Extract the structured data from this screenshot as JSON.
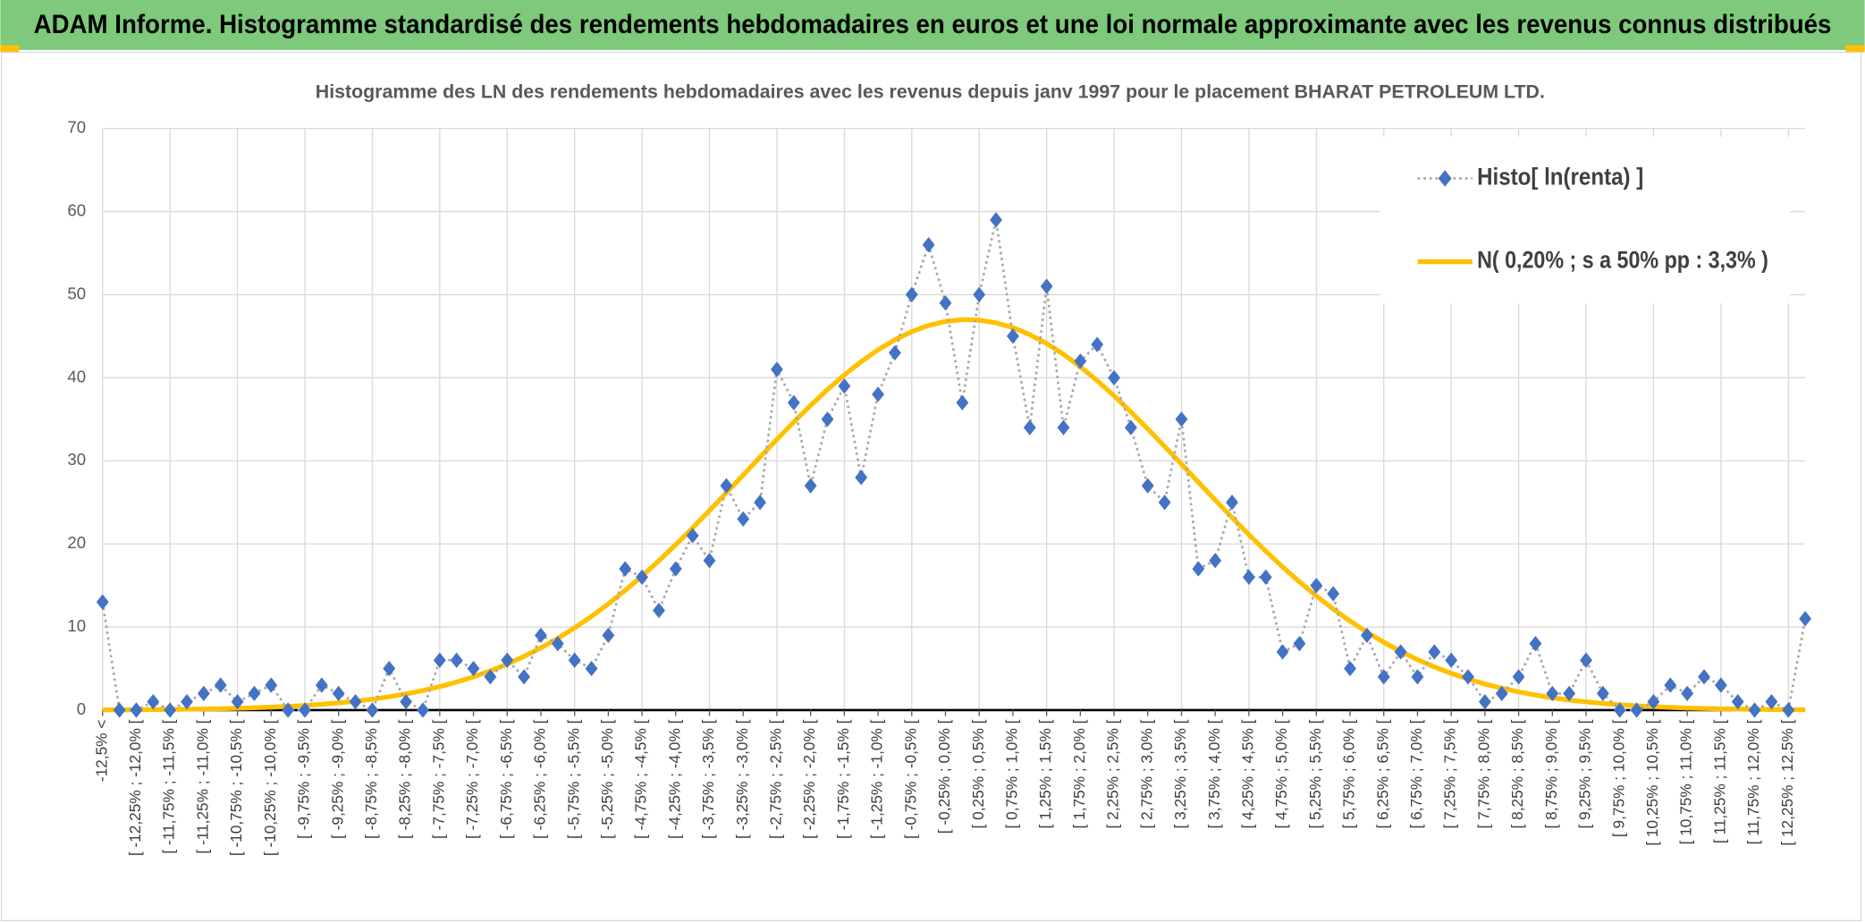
{
  "chart_data": {
    "type": "line",
    "header": "ADAM Informe. Histogramme standardisé des rendements hebdomadaires en euros et une loi normale approximante avec les revenus connus distribués",
    "title": "Histogramme des LN des rendements hebdomadaires avec les revenus depuis janv 1997 pour le placement BHARAT PETROLEUM  LTD.",
    "categories": [
      "-12,5% <",
      null,
      "[ -12,25% ; -12,0% [",
      null,
      "[ -11,75% ; -11,5% [",
      null,
      "[ -11,25% ; -11,0% [",
      null,
      "[ -10,75% ; -10,5% [",
      null,
      "[ -10,25% ; -10,0% [",
      null,
      "[ -9,75% ; -9,5% [",
      null,
      "[ -9,25% ; -9,0% [",
      null,
      "[ -8,75% ; -8,5% [",
      null,
      "[ -8,25% ; -8,0% [",
      null,
      "[ -7,75% ; -7,5% [",
      null,
      "[ -7,25% ; -7,0% [",
      null,
      "[ -6,75% ; -6,5% [",
      null,
      "[ -6,25% ; -6,0% [",
      null,
      "[ -5,75% ; -5,5% [",
      null,
      "[ -5,25% ; -5,0% [",
      null,
      "[ -4,75% ; -4,5% [",
      null,
      "[ -4,25% ; -4,0% [",
      null,
      "[ -3,75% ; -3,5% [",
      null,
      "[ -3,25% ; -3,0% [",
      null,
      "[ -2,75% ; -2,5% [",
      null,
      "[ -2,25% ; -2,0% [",
      null,
      "[ -1,75% ; -1,5% [",
      null,
      "[ -1,25% ; -1,0% [",
      null,
      "[ -0,75% ; -0,5% [",
      null,
      "[ -0,25% ; 0,0% [",
      null,
      "[ 0,25% ; 0,5% [",
      null,
      "[ 0,75% ; 1,0% [",
      null,
      "[ 1,25% ; 1,5% [",
      null,
      "[ 1,75% ; 2,0% [",
      null,
      "[ 2,25% ; 2,5% [",
      null,
      "[ 2,75% ; 3,0% [",
      null,
      "[ 3,25% ; 3,5% [",
      null,
      "[ 3,75% ; 4,0% [",
      null,
      "[ 4,25% ; 4,5% [",
      null,
      "[ 4,75% ; 5,0% [",
      null,
      "[ 5,25% ; 5,5% [",
      null,
      "[ 5,75% ; 6,0% [",
      null,
      "[ 6,25% ; 6,5% [",
      null,
      "[ 6,75% ; 7,0% [",
      null,
      "[ 7,25% ; 7,5% [",
      null,
      "[ 7,75% ; 8,0% [",
      null,
      "[ 8,25% ; 8,5% [",
      null,
      "[ 8,75% ; 9,0% [",
      null,
      "[ 9,25% ; 9,5% [",
      null,
      "[ 9,75% ; 10,0% [",
      null,
      "[ 10,25% ; 10,5% [",
      null,
      "[ 10,75% ; 11,0% [",
      null,
      "[ 11,25% ; 11,5% [",
      null,
      "[ 11,75% ; 12,0% [",
      null,
      "[ 12,25% ; 12,5% [",
      null
    ],
    "series": [
      {
        "name": "Histo[ ln(renta) ]",
        "color": "#4472c4",
        "line_color": "#a6a6a6",
        "line_style": "dotted",
        "marker": "diamond",
        "values": [
          13,
          0,
          0,
          1,
          0,
          1,
          2,
          3,
          1,
          2,
          3,
          0,
          0,
          3,
          2,
          1,
          0,
          5,
          1,
          0,
          6,
          6,
          5,
          4,
          6,
          4,
          9,
          8,
          6,
          5,
          9,
          17,
          16,
          12,
          17,
          21,
          18,
          27,
          23,
          25,
          41,
          37,
          27,
          35,
          39,
          28,
          38,
          43,
          50,
          56,
          49,
          37,
          50,
          59,
          45,
          34,
          51,
          34,
          42,
          44,
          40,
          34,
          27,
          25,
          35,
          17,
          18,
          25,
          16,
          16,
          7,
          8,
          15,
          14,
          5,
          9,
          4,
          7,
          4,
          7,
          6,
          4,
          1,
          2,
          4,
          8,
          2,
          2,
          6,
          2,
          0,
          0,
          1,
          3,
          2,
          4,
          3,
          1,
          0,
          1,
          0,
          11
        ]
      },
      {
        "name": "N( 0,20% ; s a 50% pp : 3,3% )",
        "color": "#ffc000",
        "line_style": "solid",
        "marker": "none",
        "values": [
          0.02,
          0.03,
          0.04,
          0.06,
          0.08,
          0.1,
          0.13,
          0.17,
          0.22,
          0.28,
          0.35,
          0.44,
          0.56,
          0.7,
          0.87,
          1.07,
          1.31,
          1.61,
          1.95,
          2.35,
          2.83,
          3.37,
          4.0,
          4.72,
          5.54,
          6.46,
          7.49,
          8.63,
          9.9,
          11.28,
          12.78,
          14.4,
          16.14,
          17.98,
          19.91,
          21.93,
          24.01,
          26.14,
          28.28,
          30.45,
          32.58,
          34.66,
          36.67,
          38.57,
          40.34,
          41.94,
          43.36,
          44.57,
          45.55,
          46.29,
          46.77,
          46.99,
          46.93,
          46.61,
          46.03,
          45.19,
          44.11,
          42.82,
          41.32,
          39.65,
          37.83,
          35.88,
          33.84,
          31.73,
          29.59,
          27.43,
          25.28,
          23.17,
          21.11,
          19.13,
          17.23,
          15.43,
          13.74,
          12.17,
          10.71,
          9.38,
          8.16,
          7.06,
          6.08,
          5.2,
          4.42,
          3.74,
          3.14,
          2.63,
          2.19,
          1.81,
          1.48,
          1.21,
          0.99,
          0.8,
          0.64,
          0.51,
          0.41,
          0.32,
          0.25,
          0.2,
          0.15,
          0.12,
          0.09,
          0.07,
          0.05,
          0.04
        ]
      }
    ],
    "ylim": [
      0,
      70
    ],
    "yticks": [
      0,
      10,
      20,
      30,
      40,
      50,
      60,
      70
    ],
    "grid": true,
    "legend": "top-right"
  }
}
